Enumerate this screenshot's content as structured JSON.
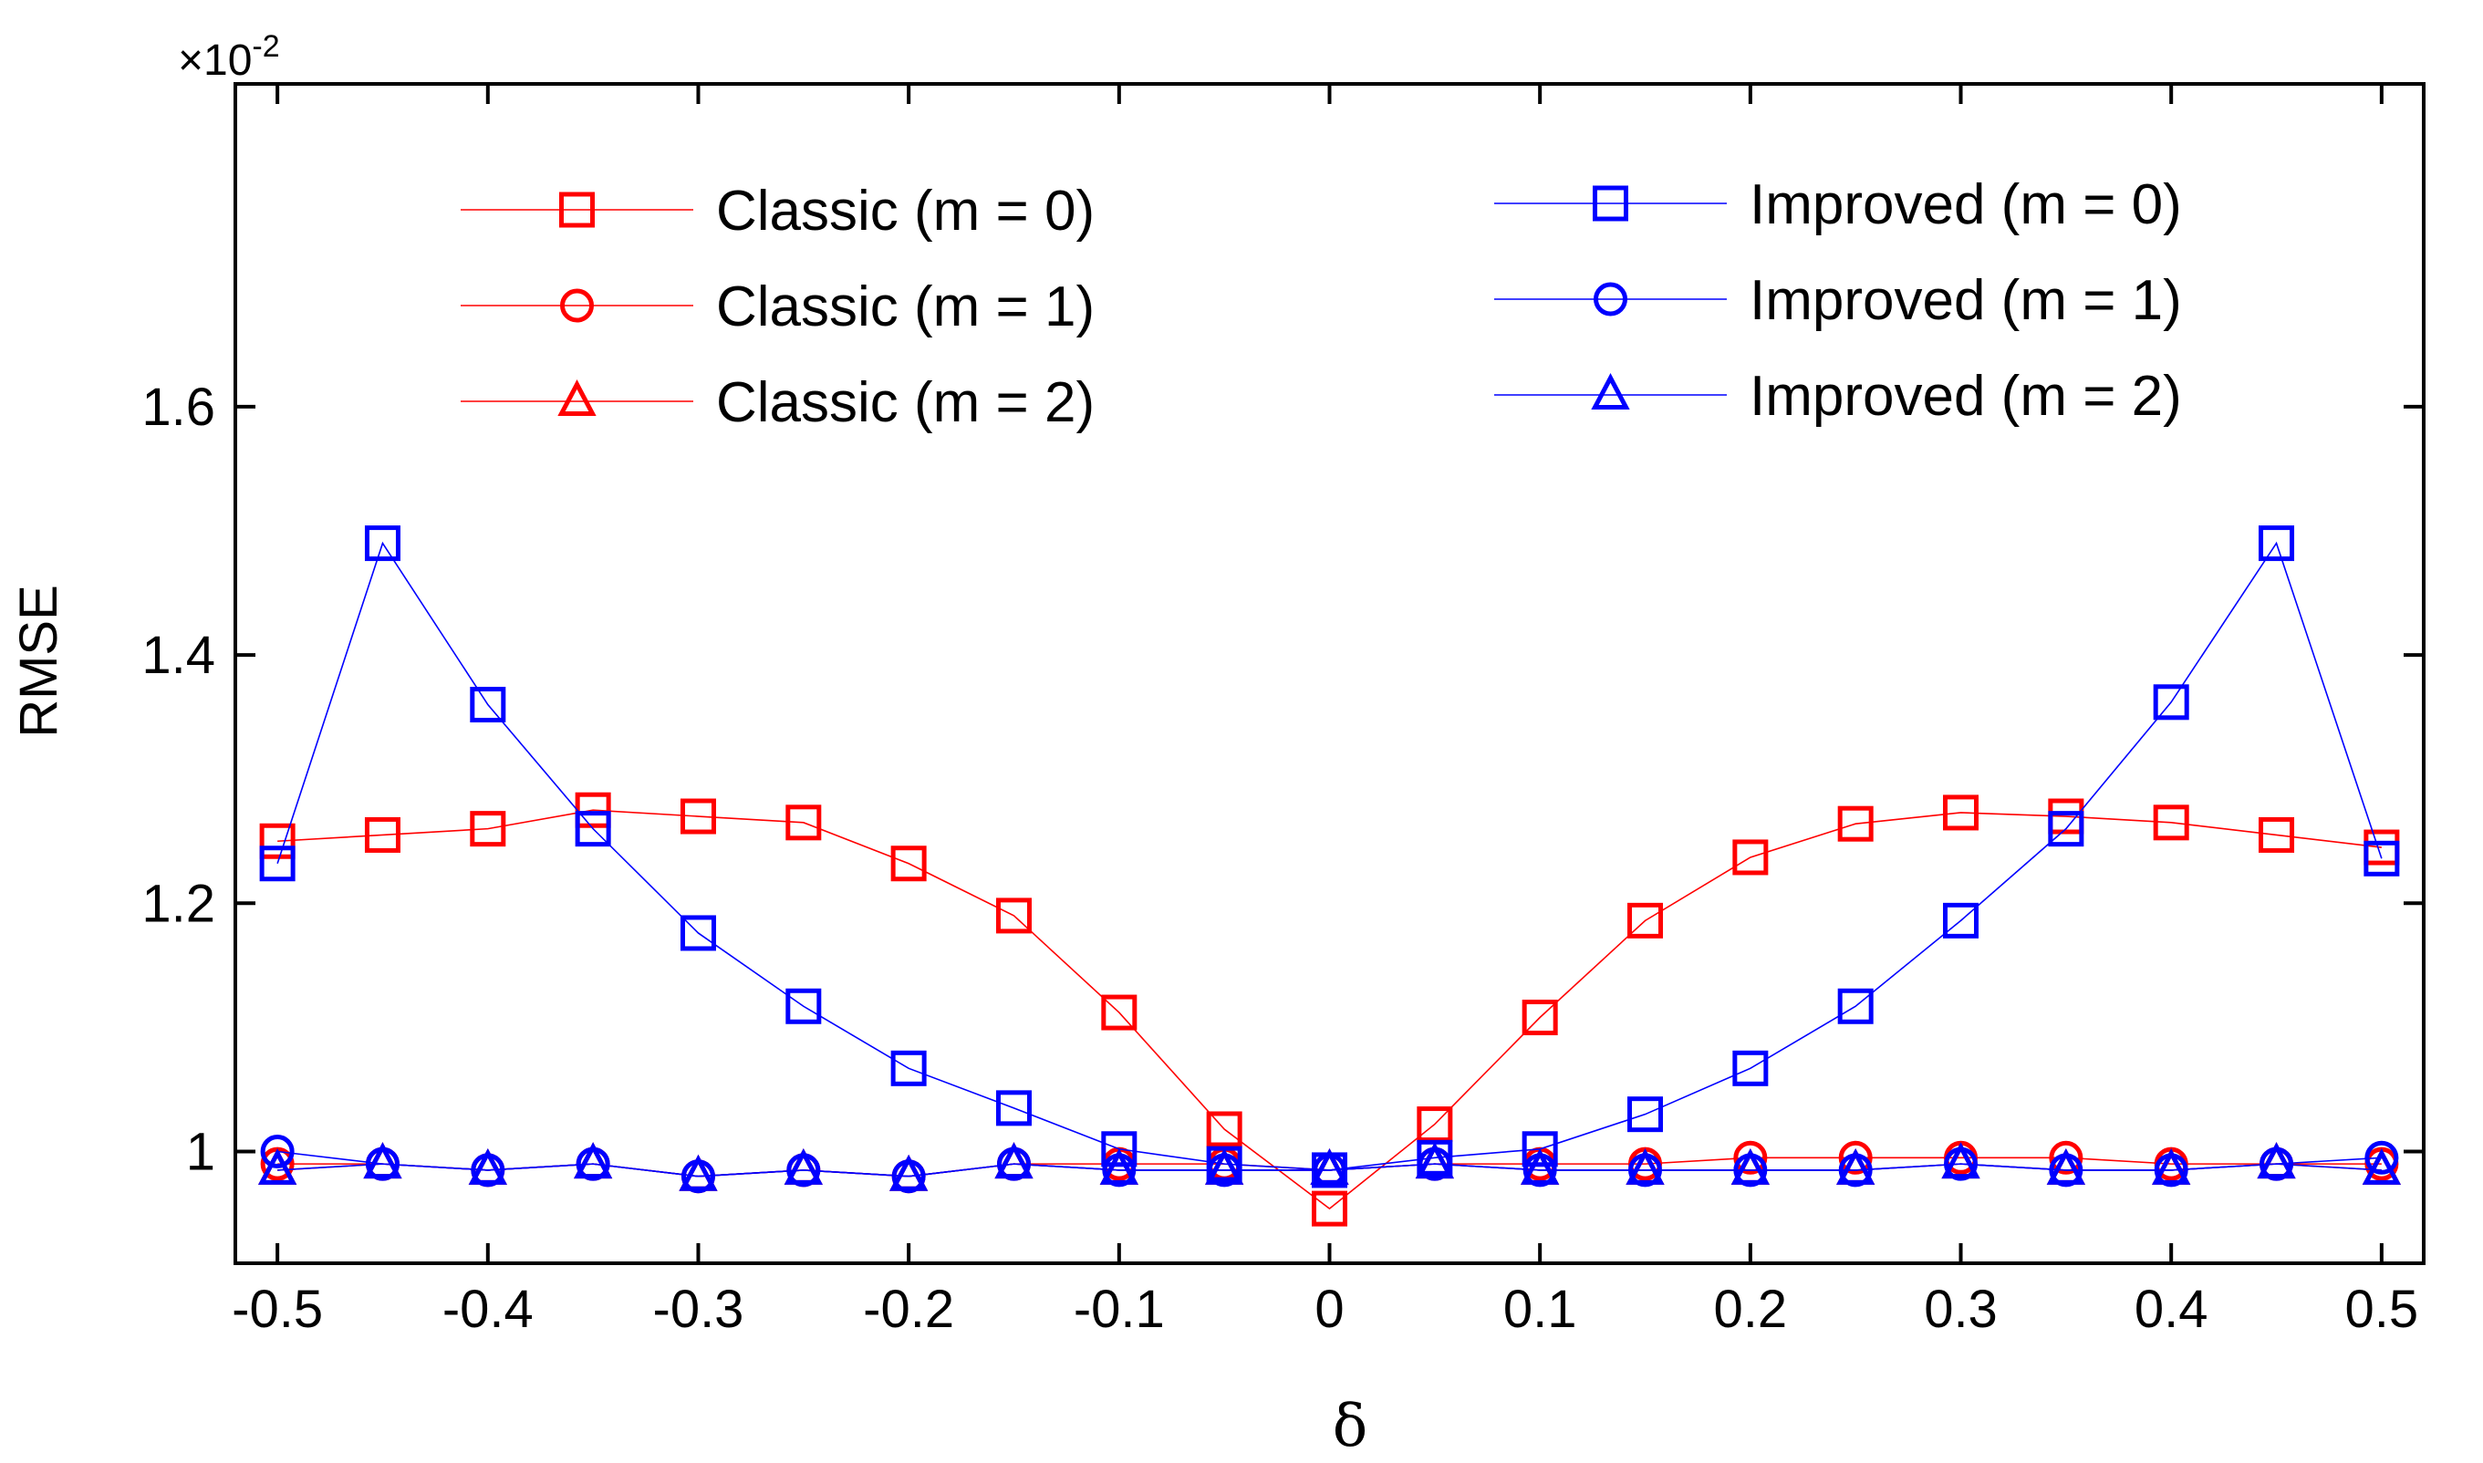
{
  "chart_data": {
    "type": "line",
    "title": "",
    "xlabel": "δ",
    "ylabel": "RMSE",
    "y_multiplier_label": "×10",
    "y_multiplier_exponent": "-2",
    "xlim": [
      -0.52,
      0.52
    ],
    "ylim": [
      0.91,
      1.86
    ],
    "x_ticks": [
      -0.5,
      -0.4,
      -0.3,
      -0.2,
      -0.1,
      0,
      0.1,
      0.2,
      0.3,
      0.4,
      0.5
    ],
    "x_tick_labels": [
      "-0.5",
      "-0.4",
      "-0.3",
      "-0.2",
      "-0.1",
      "0",
      "0.1",
      "0.2",
      "0.3",
      "0.4",
      "0.5"
    ],
    "y_ticks": [
      1.0,
      1.2,
      1.4,
      1.6
    ],
    "y_tick_labels": [
      "1",
      "1.2",
      "1.4",
      "1.6"
    ],
    "legend_position": "top",
    "x": [
      -0.5,
      -0.45,
      -0.4,
      -0.35,
      -0.3,
      -0.25,
      -0.2,
      -0.15,
      -0.1,
      -0.05,
      0,
      0.05,
      0.1,
      0.15,
      0.2,
      0.25,
      0.3,
      0.35,
      0.4,
      0.45,
      0.5
    ],
    "series": [
      {
        "name": "Classic (m = 0)",
        "color": "#ff0000",
        "marker": "square",
        "values": [
          1.25,
          1.255,
          1.26,
          1.275,
          1.27,
          1.265,
          1.232,
          1.19,
          1.112,
          1.018,
          0.954,
          1.022,
          1.108,
          1.186,
          1.237,
          1.264,
          1.273,
          1.27,
          1.265,
          1.255,
          1.245
        ]
      },
      {
        "name": "Classic (m = 1)",
        "color": "#ff0000",
        "marker": "circle",
        "values": [
          0.99,
          0.99,
          0.985,
          0.99,
          0.98,
          0.985,
          0.98,
          0.99,
          0.99,
          0.99,
          0.985,
          0.99,
          0.99,
          0.99,
          0.995,
          0.995,
          0.995,
          0.995,
          0.99,
          0.99,
          0.99
        ]
      },
      {
        "name": "Classic (m = 2)",
        "color": "#ff0000",
        "marker": "triangle",
        "values": [
          0.985,
          0.99,
          0.985,
          0.99,
          0.98,
          0.985,
          0.98,
          0.99,
          0.985,
          0.985,
          0.985,
          0.99,
          0.985,
          0.985,
          0.985,
          0.985,
          0.99,
          0.985,
          0.985,
          0.99,
          0.985
        ]
      },
      {
        "name": "Improved (m = 0)",
        "color": "#0000ff",
        "marker": "square",
        "values": [
          1.232,
          1.49,
          1.36,
          1.26,
          1.176,
          1.117,
          1.067,
          1.035,
          1.002,
          0.99,
          0.985,
          0.995,
          1.002,
          1.03,
          1.067,
          1.117,
          1.186,
          1.26,
          1.362,
          1.49,
          1.236
        ]
      },
      {
        "name": "Improved (m = 1)",
        "color": "#0000ff",
        "marker": "circle",
        "values": [
          1.0,
          0.99,
          0.985,
          0.99,
          0.98,
          0.985,
          0.98,
          0.99,
          0.985,
          0.985,
          0.985,
          0.99,
          0.985,
          0.985,
          0.985,
          0.985,
          0.99,
          0.985,
          0.985,
          0.99,
          0.995
        ]
      },
      {
        "name": "Improved (m = 2)",
        "color": "#0000ff",
        "marker": "triangle",
        "values": [
          0.985,
          0.99,
          0.985,
          0.99,
          0.98,
          0.985,
          0.98,
          0.99,
          0.985,
          0.985,
          0.985,
          0.99,
          0.985,
          0.985,
          0.985,
          0.985,
          0.99,
          0.985,
          0.985,
          0.99,
          0.985
        ]
      }
    ]
  }
}
